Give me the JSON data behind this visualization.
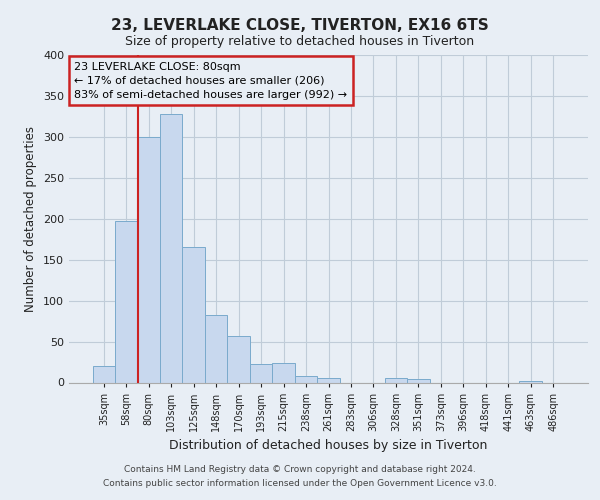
{
  "title": "23, LEVERLAKE CLOSE, TIVERTON, EX16 6TS",
  "subtitle": "Size of property relative to detached houses in Tiverton",
  "xlabel": "Distribution of detached houses by size in Tiverton",
  "ylabel": "Number of detached properties",
  "footer_line1": "Contains HM Land Registry data © Crown copyright and database right 2024.",
  "footer_line2": "Contains public sector information licensed under the Open Government Licence v3.0.",
  "bar_color": "#c8d8ee",
  "bar_edge_color": "#7aaacc",
  "annotation_box_edge": "#cc2222",
  "vline_color": "#cc2222",
  "tick_labels": [
    "35sqm",
    "58sqm",
    "80sqm",
    "103sqm",
    "125sqm",
    "148sqm",
    "170sqm",
    "193sqm",
    "215sqm",
    "238sqm",
    "261sqm",
    "283sqm",
    "306sqm",
    "328sqm",
    "351sqm",
    "373sqm",
    "396sqm",
    "418sqm",
    "441sqm",
    "463sqm",
    "486sqm"
  ],
  "bar_values": [
    20,
    197,
    300,
    328,
    165,
    82,
    57,
    22,
    24,
    8,
    6,
    0,
    0,
    5,
    4,
    0,
    0,
    0,
    0,
    2,
    0
  ],
  "vline_x": 2,
  "annotation_line1": "23 LEVERLAKE CLOSE: 80sqm",
  "annotation_line2": "← 17% of detached houses are smaller (206)",
  "annotation_line3": "83% of semi-detached houses are larger (992) →",
  "ylim": [
    0,
    400
  ],
  "yticks": [
    0,
    50,
    100,
    150,
    200,
    250,
    300,
    350,
    400
  ],
  "background_color": "#e8eef5",
  "plot_bg_color": "#e8eef5",
  "grid_color": "#c0ccd8"
}
